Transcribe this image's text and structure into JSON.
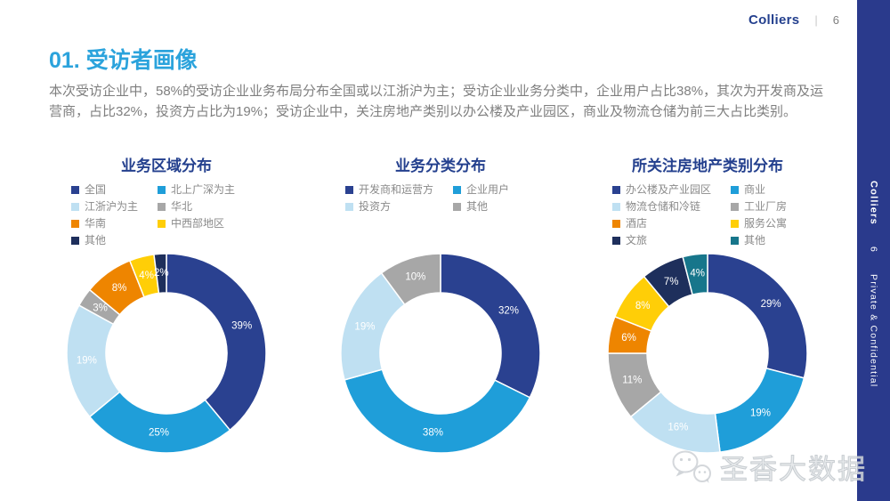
{
  "header": {
    "brand": "Colliers",
    "divider": "|",
    "page_number": "6"
  },
  "sidebar": {
    "brand": "Colliers",
    "page_number": "6",
    "confidential": "Private & Confidential"
  },
  "page": {
    "title": "01. 受访者画像",
    "intro": "本次受访企业中，58%的受访企业业务布局分布全国或以江浙沪为主；受访企业业务分类中，企业用户占比38%，其次为开发商及运营商，占比32%，投资方占比为19%；受访企业中，关注房地产类别以办公楼及产业园区，商业及物流仓储为前三大占比类别。"
  },
  "watermark": {
    "icon": "wechat-logo",
    "text": "圣香大数据"
  },
  "chart_data": [
    {
      "type": "pie",
      "subtype": "donut",
      "title": "业务区域分布",
      "categories": [
        "全国",
        "北上广深为主",
        "江浙沪为主",
        "华北",
        "华南",
        "中西部地区",
        "其他"
      ],
      "values": [
        39,
        25,
        19,
        3,
        8,
        4,
        2
      ],
      "data_labels": [
        "39%",
        "25%",
        "19%",
        "3%",
        "8%",
        "4%",
        "2%"
      ],
      "colors": [
        "#2A4190",
        "#1F9ED9",
        "#BFE0F2",
        "#A7A7A7",
        "#EE8500",
        "#FFCE07",
        "#1E2F5C"
      ],
      "start_angle": 0,
      "direction": "clockwise",
      "legend_position": "top",
      "legend_columns": 2
    },
    {
      "type": "pie",
      "subtype": "donut",
      "title": "业务分类分布",
      "categories": [
        "开发商和运营方",
        "企业用户",
        "投资方",
        "其他"
      ],
      "values": [
        32,
        38,
        19,
        10
      ],
      "data_labels": [
        "32%",
        "38%",
        "19%",
        "10%"
      ],
      "colors": [
        "#2A4190",
        "#1F9ED9",
        "#BFE0F2",
        "#A7A7A7"
      ],
      "start_angle": 0,
      "direction": "clockwise",
      "legend_position": "top",
      "legend_columns": 2
    },
    {
      "type": "pie",
      "subtype": "donut",
      "title": "所关注房地产类别分布",
      "categories": [
        "办公楼及产业园区",
        "商业",
        "物流仓储和冷链",
        "工业厂房",
        "酒店",
        "服务公寓",
        "文旅",
        "其他"
      ],
      "values": [
        29,
        19,
        16,
        11,
        6,
        8,
        7,
        4
      ],
      "data_labels": [
        "29%",
        "19%",
        "16%",
        "11%",
        "6%",
        "8%",
        "7%",
        "4%"
      ],
      "colors": [
        "#2A4190",
        "#1F9ED9",
        "#BFE0F2",
        "#A7A7A7",
        "#EE8500",
        "#FFCE07",
        "#1E2F5C",
        "#17768B"
      ],
      "start_angle": 0,
      "direction": "clockwise",
      "legend_position": "top",
      "legend_columns": 2
    }
  ]
}
